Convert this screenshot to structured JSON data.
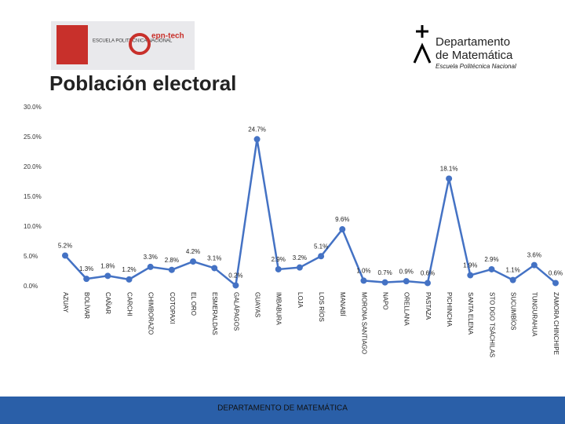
{
  "header": {
    "left_logo_text": "ESCUELA POLITÉCNICA NACIONAL",
    "left_logo_brand": "epn-tech",
    "right_logo_line1": "Departamento",
    "right_logo_line2": "de Matemática",
    "right_logo_line3": "Escuela Politécnica Nacional"
  },
  "footer": {
    "text": "DEPARTAMENTO DE MATEMÁTICA"
  },
  "chart_data": {
    "type": "line",
    "title": "Población electoral",
    "categories": [
      "AZUAY",
      "BOLÍVAR",
      "CAÑAR",
      "CARCHI",
      "CHIMBORAZO",
      "COTOPAXI",
      "EL ORO",
      "ESMERALDAS",
      "GALÁPAGOS",
      "GUAYAS",
      "IMBABURA",
      "LOJA",
      "LOS RÍOS",
      "MANABÍ",
      "MORONA SANTIAGO",
      "NAPO",
      "ORELLANA",
      "PASTAZA",
      "PICHINCHA",
      "SANTA ELENA",
      "STO DGO TSÁCHILAS",
      "SUCUMBÍOS",
      "TUNGURAHUA",
      "ZAMORA CHINCHIPE"
    ],
    "values": [
      5.2,
      1.3,
      1.8,
      1.2,
      3.3,
      2.8,
      4.2,
      3.1,
      0.2,
      24.7,
      2.9,
      3.2,
      5.1,
      9.6,
      1.0,
      0.7,
      0.9,
      0.6,
      18.1,
      1.9,
      2.9,
      1.1,
      3.6,
      0.6
    ],
    "value_labels": [
      "5.2%",
      "1.3%",
      "1.8%",
      "1.2%",
      "3.3%",
      "2.8%",
      "4.2%",
      "3.1%",
      "0.2%",
      "24.7%",
      "2.9%",
      "3.2%",
      "5.1%",
      "9.6%",
      "1.0%",
      "0.7%",
      "0.9%",
      "0.6%",
      "18.1%",
      "1.9%",
      "2.9%",
      "1.1%",
      "3.6%",
      "0.6%"
    ],
    "color": "#4472c4",
    "ylim": [
      0,
      30
    ],
    "yticks": [
      {
        "value": 0,
        "label": "0.0%"
      },
      {
        "value": 5,
        "label": "5.0%"
      },
      {
        "value": 10,
        "label": "10.0%"
      },
      {
        "value": 15,
        "label": "15.0%"
      },
      {
        "value": 20,
        "label": "20.0%"
      },
      {
        "value": 25,
        "label": "25.0%"
      },
      {
        "value": 30,
        "label": "30.0%"
      }
    ]
  }
}
